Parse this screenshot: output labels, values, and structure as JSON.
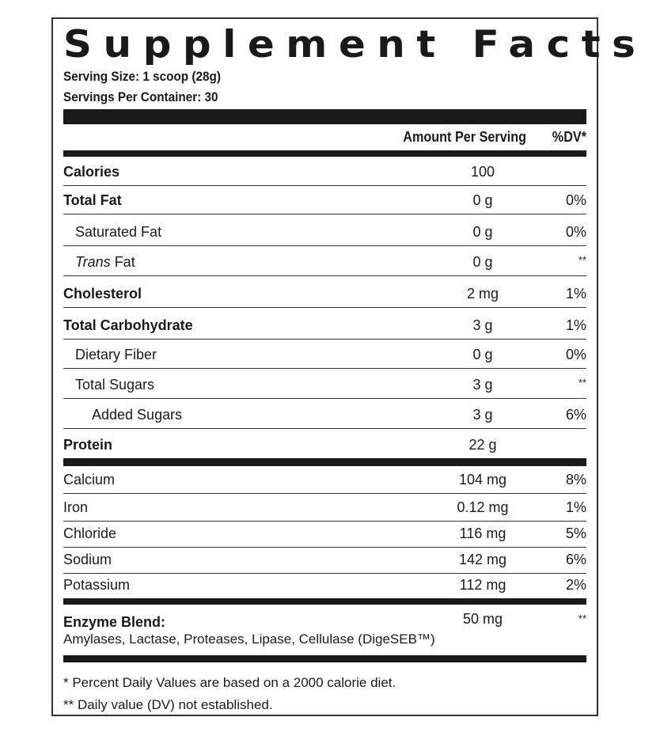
{
  "title": "Supplement Facts",
  "serving_size": "Serving Size: 1 scoop (28g)",
  "servings_per_container": "Servings Per Container: 30",
  "header": {
    "amount": "Amount Per Serving",
    "dv": "%DV*"
  },
  "rows": [
    {
      "name": "Calories",
      "amount": "100",
      "dv": ""
    },
    {
      "name": "Total Fat",
      "amount": "0 g",
      "dv": "0%"
    },
    {
      "name": "Saturated Fat",
      "amount": "0 g",
      "dv": "0%"
    },
    {
      "name_italic": "Trans",
      "name": " Fat",
      "amount": "0 g",
      "dv": "**"
    },
    {
      "name": "Cholesterol",
      "amount": "2 mg",
      "dv": "1%"
    },
    {
      "name": "Total Carbohydrate",
      "amount": "3 g",
      "dv": "1%"
    },
    {
      "name": "Dietary Fiber",
      "amount": "0 g",
      "dv": "0%"
    },
    {
      "name": "Total Sugars",
      "amount": "3 g",
      "dv": "**"
    },
    {
      "name": "Added Sugars",
      "amount": "3 g",
      "dv": "6%"
    },
    {
      "name": "Protein",
      "amount": "22 g",
      "dv": ""
    }
  ],
  "minerals": [
    {
      "name": "Calcium",
      "amount": "104 mg",
      "dv": "8%"
    },
    {
      "name": "Iron",
      "amount": "0.12 mg",
      "dv": "1%"
    },
    {
      "name": "Chloride",
      "amount": "116 mg",
      "dv": "5%"
    },
    {
      "name": "Sodium",
      "amount": "142 mg",
      "dv": "6%"
    },
    {
      "name": "Potassium",
      "amount": "112 mg",
      "dv": "2%"
    }
  ],
  "enzyme": {
    "name": "Enzyme Blend:",
    "amount": "50 mg",
    "dv": "**",
    "ingredients": "Amylases, Lactase, Proteases, Lipase, Cellulase (DigeSEB™)"
  },
  "footnotes": [
    "* Percent Daily Values are based on a 2000 calorie diet.",
    "** Daily value (DV) not established."
  ]
}
